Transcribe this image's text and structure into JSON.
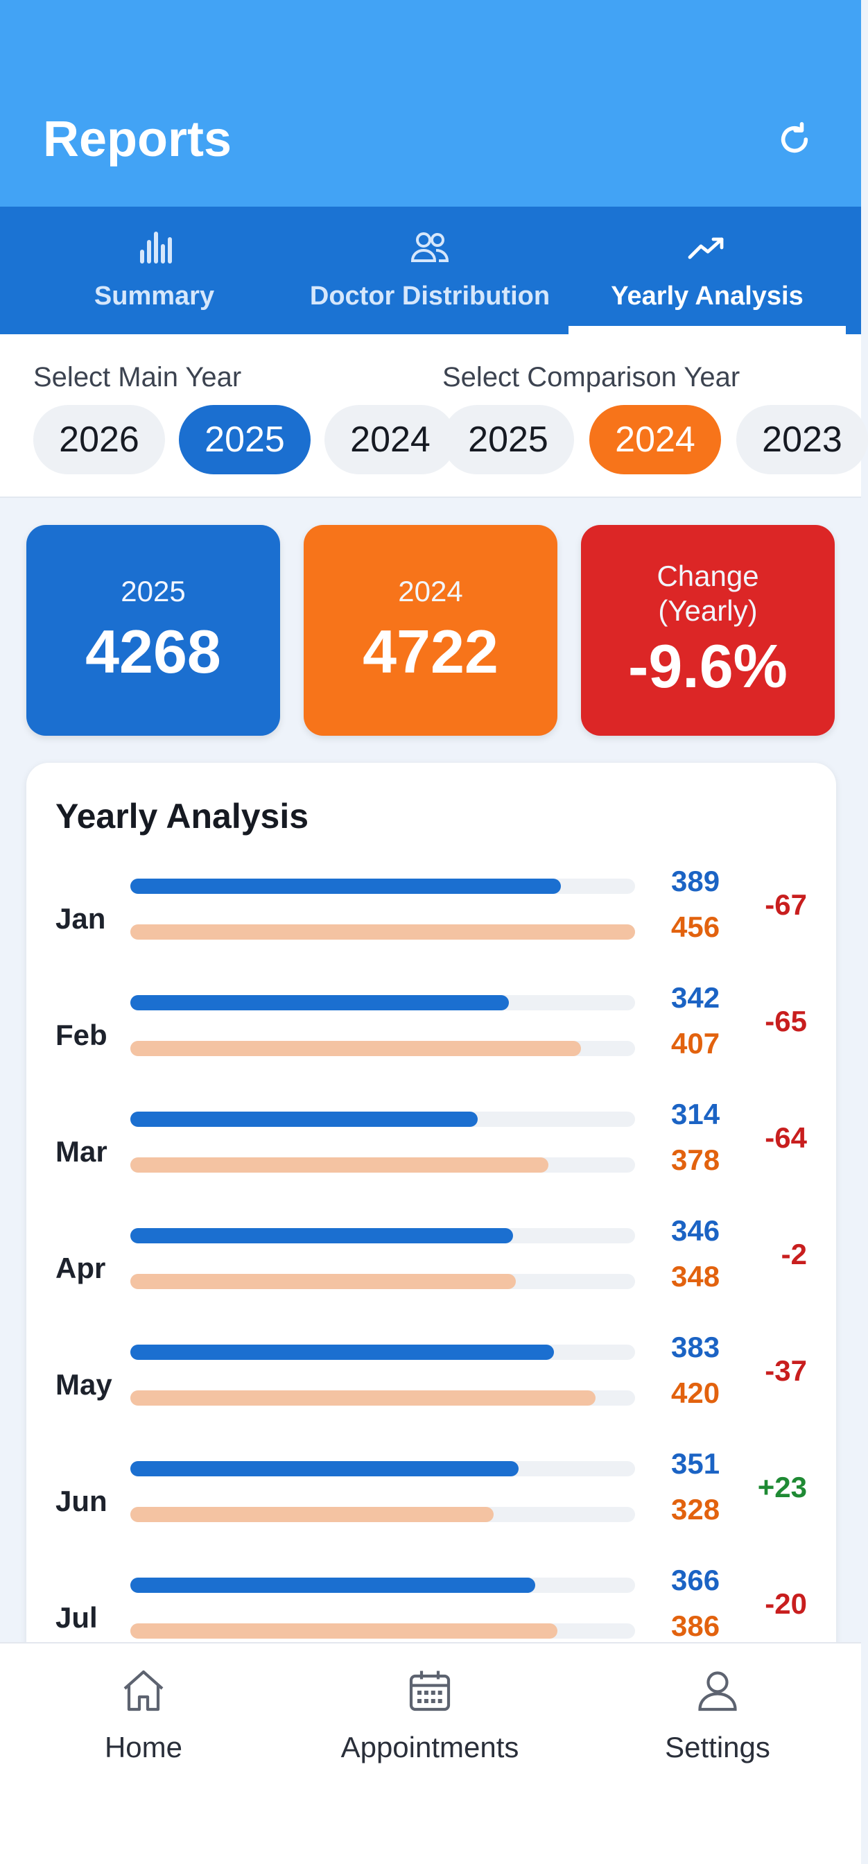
{
  "header": {
    "title": "Reports",
    "refresh_icon": "refresh-icon",
    "background_color": "#42a3f5"
  },
  "tabs": [
    {
      "label": "Summary",
      "icon": "bar-chart-icon",
      "active": false
    },
    {
      "label": "Doctor Distribution",
      "icon": "users-icon",
      "active": false
    },
    {
      "label": "Yearly Analysis",
      "icon": "trending-up-icon",
      "active": true
    }
  ],
  "year_select": {
    "main_label": "Select Main Year",
    "main_years": [
      "2026",
      "2025",
      "2024"
    ],
    "main_selected": "2025",
    "comparison_label": "Select Comparison Year",
    "comparison_years": [
      "2025",
      "2024",
      "2023"
    ],
    "comparison_selected": "2024"
  },
  "stats": {
    "main": {
      "label": "2025",
      "value": "4268",
      "color": "#1b6fd0"
    },
    "comparison": {
      "label": "2024",
      "value": "4722",
      "color": "#f7741a"
    },
    "change": {
      "label_line1": "Change",
      "label_line2": "(Yearly)",
      "value": "-9.6%",
      "color": "#dc2626"
    }
  },
  "analysis": {
    "title": "Yearly Analysis",
    "max_value": 456,
    "months": [
      {
        "month": "Jan",
        "main": 389,
        "comparison": 456,
        "diff": "-67"
      },
      {
        "month": "Feb",
        "main": 342,
        "comparison": 407,
        "diff": "-65"
      },
      {
        "month": "Mar",
        "main": 314,
        "comparison": 378,
        "diff": "-64"
      },
      {
        "month": "Apr",
        "main": 346,
        "comparison": 348,
        "diff": "-2"
      },
      {
        "month": "May",
        "main": 383,
        "comparison": 420,
        "diff": "-37"
      },
      {
        "month": "Jun",
        "main": 351,
        "comparison": 328,
        "diff": "+23"
      },
      {
        "month": "Jul",
        "main": 366,
        "comparison": 386,
        "diff": "-20"
      }
    ]
  },
  "bottom_nav": [
    {
      "label": "Home",
      "icon": "home-icon"
    },
    {
      "label": "Appointments",
      "icon": "calendar-icon"
    },
    {
      "label": "Settings",
      "icon": "user-icon"
    }
  ]
}
